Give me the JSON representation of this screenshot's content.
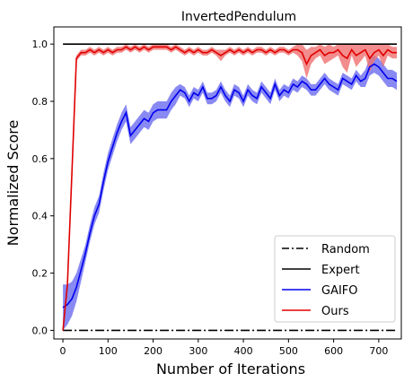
{
  "chart_data": {
    "type": "line",
    "title": "InvertedPendulum",
    "xlabel": "Number of Iterations",
    "ylabel": "Normalized Score",
    "xlim": [
      -20,
      750
    ],
    "ylim": [
      -0.03,
      1.06
    ],
    "xticks": [
      "0",
      "100",
      "200",
      "300",
      "400",
      "500",
      "600",
      "700"
    ],
    "yticks": [
      "0.0",
      "0.2",
      "0.4",
      "0.6",
      "0.8",
      "1.0"
    ],
    "grid": false,
    "legend_position": "bottom-right",
    "series": [
      {
        "name": "Random",
        "color": "#000000",
        "style": "dashdot",
        "x": [
          0,
          740
        ],
        "y": [
          0.0,
          0.0
        ]
      },
      {
        "name": "Expert",
        "color": "#000000",
        "style": "solid",
        "x": [
          0,
          740
        ],
        "y": [
          1.0,
          1.0
        ]
      },
      {
        "name": "GAIFO",
        "color": "#0000ee",
        "band_color": "#6b6bf0",
        "style": "solid",
        "x": [
          0,
          10,
          20,
          30,
          40,
          50,
          60,
          70,
          80,
          90,
          100,
          110,
          120,
          130,
          140,
          150,
          160,
          170,
          180,
          190,
          200,
          210,
          220,
          230,
          240,
          250,
          260,
          270,
          280,
          290,
          300,
          310,
          320,
          330,
          340,
          350,
          360,
          370,
          380,
          390,
          400,
          410,
          420,
          430,
          440,
          450,
          460,
          470,
          480,
          490,
          500,
          510,
          520,
          530,
          540,
          550,
          560,
          570,
          580,
          590,
          600,
          610,
          620,
          630,
          640,
          650,
          660,
          670,
          680,
          690,
          700,
          710,
          720,
          730,
          740
        ],
        "y": [
          0.08,
          0.09,
          0.11,
          0.15,
          0.21,
          0.27,
          0.34,
          0.4,
          0.44,
          0.52,
          0.59,
          0.64,
          0.69,
          0.73,
          0.76,
          0.68,
          0.7,
          0.72,
          0.74,
          0.73,
          0.76,
          0.77,
          0.77,
          0.77,
          0.8,
          0.82,
          0.84,
          0.83,
          0.8,
          0.83,
          0.82,
          0.85,
          0.81,
          0.81,
          0.82,
          0.85,
          0.82,
          0.8,
          0.84,
          0.83,
          0.8,
          0.84,
          0.82,
          0.81,
          0.85,
          0.83,
          0.81,
          0.86,
          0.82,
          0.84,
          0.83,
          0.86,
          0.85,
          0.87,
          0.86,
          0.84,
          0.84,
          0.86,
          0.88,
          0.86,
          0.85,
          0.84,
          0.88,
          0.87,
          0.86,
          0.89,
          0.87,
          0.88,
          0.92,
          0.93,
          0.92,
          0.9,
          0.88,
          0.88,
          0.87
        ],
        "spread": [
          0.08,
          0.07,
          0.06,
          0.05,
          0.04,
          0.03,
          0.03,
          0.03,
          0.03,
          0.03,
          0.03,
          0.03,
          0.03,
          0.03,
          0.03,
          0.03,
          0.03,
          0.03,
          0.03,
          0.03,
          0.03,
          0.03,
          0.03,
          0.03,
          0.03,
          0.03,
          0.02,
          0.02,
          0.02,
          0.02,
          0.02,
          0.02,
          0.02,
          0.02,
          0.02,
          0.02,
          0.02,
          0.02,
          0.02,
          0.02,
          0.02,
          0.02,
          0.02,
          0.02,
          0.02,
          0.02,
          0.02,
          0.02,
          0.02,
          0.02,
          0.02,
          0.02,
          0.02,
          0.02,
          0.02,
          0.02,
          0.02,
          0.02,
          0.02,
          0.02,
          0.02,
          0.02,
          0.02,
          0.02,
          0.02,
          0.02,
          0.02,
          0.03,
          0.03,
          0.03,
          0.03,
          0.03,
          0.03,
          0.03,
          0.03
        ]
      },
      {
        "name": "Ours",
        "color": "#e00000",
        "band_color": "#f07070",
        "style": "solid",
        "x": [
          0,
          10,
          20,
          30,
          40,
          50,
          60,
          70,
          80,
          90,
          100,
          110,
          120,
          130,
          140,
          150,
          160,
          170,
          180,
          190,
          200,
          210,
          220,
          230,
          240,
          250,
          260,
          270,
          280,
          290,
          300,
          310,
          320,
          330,
          340,
          350,
          360,
          370,
          380,
          390,
          400,
          410,
          420,
          430,
          440,
          450,
          460,
          470,
          480,
          490,
          500,
          510,
          520,
          530,
          540,
          550,
          560,
          570,
          580,
          590,
          600,
          610,
          620,
          630,
          640,
          650,
          660,
          670,
          680,
          690,
          700,
          710,
          720,
          730,
          740
        ],
        "y": [
          0.0,
          0.16,
          0.55,
          0.95,
          0.97,
          0.97,
          0.98,
          0.97,
          0.98,
          0.97,
          0.98,
          0.97,
          0.98,
          0.98,
          0.99,
          0.98,
          0.99,
          0.98,
          0.99,
          0.98,
          0.99,
          0.99,
          0.99,
          0.99,
          0.98,
          0.99,
          0.98,
          0.97,
          0.98,
          0.97,
          0.98,
          0.97,
          0.97,
          0.98,
          0.97,
          0.96,
          0.97,
          0.98,
          0.97,
          0.98,
          0.97,
          0.98,
          0.97,
          0.98,
          0.98,
          0.97,
          0.98,
          0.97,
          0.98,
          0.98,
          0.97,
          0.98,
          0.98,
          0.97,
          0.93,
          0.96,
          0.97,
          0.98,
          0.96,
          0.97,
          0.97,
          0.98,
          0.96,
          0.95,
          0.98,
          0.96,
          0.97,
          0.98,
          0.95,
          0.97,
          0.98,
          0.96,
          0.98,
          0.97,
          0.97
        ],
        "spread": [
          0.0,
          0.01,
          0.02,
          0.01,
          0.01,
          0.01,
          0.01,
          0.01,
          0.01,
          0.01,
          0.01,
          0.01,
          0.01,
          0.01,
          0.01,
          0.01,
          0.01,
          0.01,
          0.01,
          0.01,
          0.01,
          0.01,
          0.01,
          0.01,
          0.01,
          0.01,
          0.01,
          0.01,
          0.01,
          0.01,
          0.01,
          0.01,
          0.01,
          0.01,
          0.01,
          0.02,
          0.01,
          0.01,
          0.01,
          0.01,
          0.01,
          0.01,
          0.01,
          0.01,
          0.01,
          0.01,
          0.01,
          0.01,
          0.01,
          0.01,
          0.01,
          0.01,
          0.02,
          0.03,
          0.05,
          0.03,
          0.02,
          0.02,
          0.03,
          0.03,
          0.02,
          0.02,
          0.04,
          0.05,
          0.02,
          0.04,
          0.03,
          0.02,
          0.05,
          0.03,
          0.02,
          0.04,
          0.02,
          0.02,
          0.02
        ]
      }
    ]
  }
}
